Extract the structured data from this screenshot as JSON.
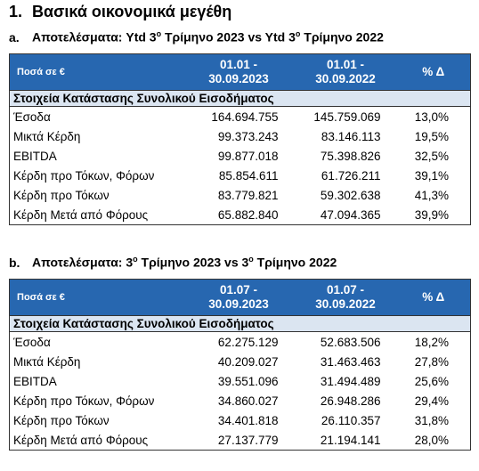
{
  "heading": {
    "number": "1.",
    "text": "Βασικά οικονομικά μεγέθη"
  },
  "sections": [
    {
      "letter": "a.",
      "title": [
        "Αποτελέσματα: Ytd 3",
        "ο",
        " Τρίμηνο 2023 vs Ytd 3",
        "ο",
        " Τρίμηνο 2022"
      ],
      "table": {
        "header": [
          [
            "Ποσά σε €"
          ],
          [
            "01.01 -",
            "30.09.2023"
          ],
          [
            "01.01 -",
            "30.09.2022"
          ],
          [
            "% Δ"
          ]
        ],
        "group": "Στοιχεία Κατάστασης Συνολικού Εισοδήματος",
        "rows": [
          [
            "Έσοδα",
            "164.694.755",
            "145.759.069",
            "13,0%"
          ],
          [
            "Μικτά Κέρδη",
            "99.373.243",
            "83.146.113",
            "19,5%"
          ],
          [
            "EBITDA",
            "99.877.018",
            "75.398.826",
            "32,5%"
          ],
          [
            "Κέρδη προ Τόκων, Φόρων",
            "85.854.611",
            "61.726.211",
            "39,1%"
          ],
          [
            "Κέρδη προ Τόκων",
            "83.779.821",
            "59.302.638",
            "41,3%"
          ],
          [
            "Κέρδη Μετά από Φόρους",
            "65.882.840",
            "47.094.365",
            "39,9%"
          ]
        ]
      }
    },
    {
      "letter": "b.",
      "title": [
        "Αποτελέσματα: 3",
        "ο",
        " Τρίμηνο 2023 vs 3",
        "ο",
        " Τρίμηνο 2022"
      ],
      "table": {
        "header": [
          [
            "Ποσά σε €"
          ],
          [
            "01.07 -",
            "30.09.2023"
          ],
          [
            "01.07 -",
            "30.09.2022"
          ],
          [
            "% Δ"
          ]
        ],
        "group": "Στοιχεία Κατάστασης Συνολικού Εισοδήματος",
        "rows": [
          [
            "Έσοδα",
            "62.275.129",
            "52.683.506",
            "18,2%"
          ],
          [
            "Μικτά Κέρδη",
            "40.209.027",
            "31.463.463",
            "27,8%"
          ],
          [
            "EBITDA",
            "39.551.096",
            "31.494.489",
            "25,6%"
          ],
          [
            "Κέρδη προ Τόκων, Φόρων",
            "34.860.027",
            "26.948.286",
            "29,4%"
          ],
          [
            "Κέρδη προ Τόκων",
            "34.401.818",
            "26.110.357",
            "31,8%"
          ],
          [
            "Κέρδη Μετά από Φόρους",
            "27.137.779",
            "21.194.141",
            "28,0%"
          ]
        ]
      }
    }
  ]
}
